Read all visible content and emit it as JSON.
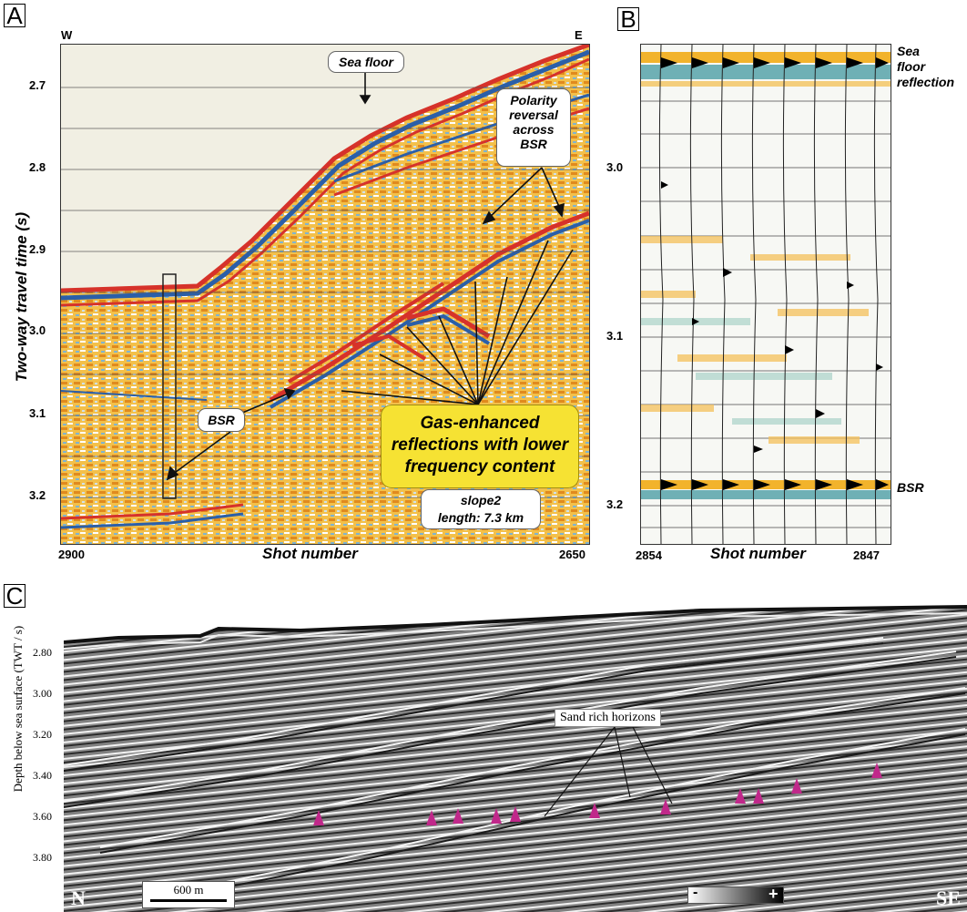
{
  "panelA": {
    "letter": "A",
    "west": "W",
    "east": "E",
    "ylabel": "Two-way travel time (s)",
    "yticks": [
      "2.7",
      "2.8",
      "2.9",
      "3.0",
      "3.1",
      "3.2"
    ],
    "xtick_left": "2900",
    "xtick_right": "2650",
    "xlabel": "Shot number",
    "seafloor_label": "Sea floor",
    "polarity_label_lines": [
      "Polarity",
      "reversal",
      "across",
      "BSR"
    ],
    "bsr_label": "BSR",
    "gas_lines": [
      "Gas-enhanced",
      "reflections with lower",
      "frequency content"
    ],
    "slope_line1": "slope2",
    "slope_line2": "length: 7.3 km"
  },
  "panelB": {
    "letter": "B",
    "yticks": [
      "3.0",
      "3.1",
      "3.2"
    ],
    "xtick_left": "2854",
    "xtick_right": "2847",
    "xlabel": "Shot number",
    "seafloor_lines": [
      "Sea",
      "floor",
      "reflection"
    ],
    "bsr_label": "BSR"
  },
  "panelC": {
    "letter": "C",
    "ylabel": "Depth below sea surface (TWT / s)",
    "yticks": [
      "2.80",
      "3.00",
      "3.20",
      "3.40",
      "3.60",
      "3.80"
    ],
    "sand_label": "Sand rich horizons",
    "north": "N",
    "southeast": "SE",
    "scalebar": "600 m",
    "polarity_minus": "-",
    "polarity_plus": "+",
    "marker_color": "#c0288a"
  }
}
